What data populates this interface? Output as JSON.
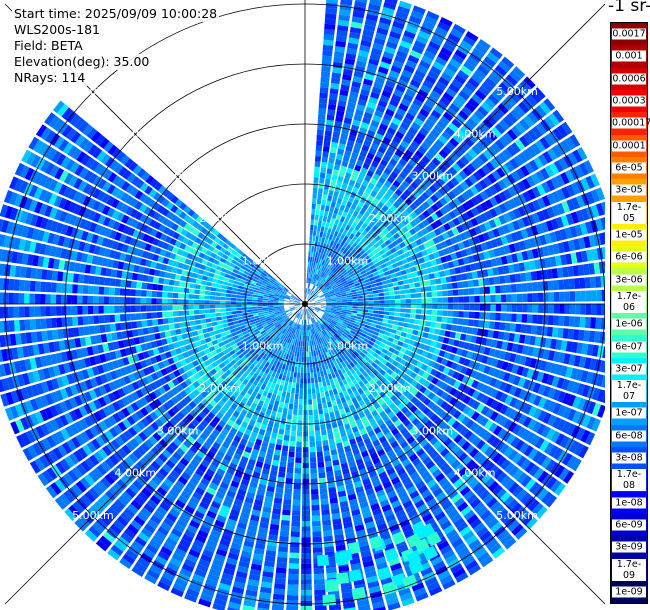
{
  "info": {
    "start_time": "Start time: 2025/09/09 10:00:28",
    "instrument": "WLS200s-181",
    "field": "Field: BETA",
    "elevation": "Elevation(deg): 35.00",
    "nrays": "NRays: 114"
  },
  "colorbar": {
    "title": "-1 sr-",
    "levels": [
      {
        "label": "0.0017",
        "color": "#8b0000"
      },
      {
        "label": "0.001",
        "color": "#b00000"
      },
      {
        "label": "0.0006",
        "color": "#d40000"
      },
      {
        "label": "0.0003",
        "color": "#f00000"
      },
      {
        "label": "0.00017",
        "color": "#ff2400"
      },
      {
        "label": "0.0001",
        "color": "#ff5a00"
      },
      {
        "label": "6e-05",
        "color": "#ff8000"
      },
      {
        "label": "3e-05",
        "color": "#ffa000"
      },
      {
        "label": "1.7e-05",
        "color": "#ffc800"
      },
      {
        "label": "1e-05",
        "color": "#ffef00"
      },
      {
        "label": "6e-06",
        "color": "#e6ff1a"
      },
      {
        "label": "3e-06",
        "color": "#b8ff47"
      },
      {
        "label": "1.7e-06",
        "color": "#8cff73"
      },
      {
        "label": "1e-06",
        "color": "#5cffa3"
      },
      {
        "label": "6e-07",
        "color": "#2effd0"
      },
      {
        "label": "3e-07",
        "color": "#00f0ff"
      },
      {
        "label": "1.7e-07",
        "color": "#00c8ff"
      },
      {
        "label": "1e-07",
        "color": "#00a0ff"
      },
      {
        "label": "6e-08",
        "color": "#0078ff"
      },
      {
        "label": "3e-08",
        "color": "#0050ff"
      },
      {
        "label": "1.7e-08",
        "color": "#0028ff"
      },
      {
        "label": "1e-08",
        "color": "#0000ff"
      },
      {
        "label": "6e-09",
        "color": "#0000d0"
      },
      {
        "label": "3e-09",
        "color": "#0000a8"
      },
      {
        "label": "1.7e-09",
        "color": "#000080"
      },
      {
        "label": "1e-09",
        "color": "#00005a"
      }
    ]
  },
  "chart_data": {
    "type": "heatmap",
    "projection": "polar PPI scan",
    "field": "BETA",
    "elevation_deg": 35.0,
    "nrays": 114,
    "range_max_km": 5.3,
    "range_rings_km": [
      1.0,
      2.0,
      3.0,
      4.0,
      5.0
    ],
    "ring_labels": [
      "1.00km",
      "2.00km",
      "3.00km",
      "4.00km",
      "5.00km"
    ],
    "missing_sector_deg": [
      -25,
      0
    ],
    "dominant_levels": [
      "1e-08",
      "6e-08",
      "1.7e-07"
    ],
    "color_scale": "log"
  }
}
